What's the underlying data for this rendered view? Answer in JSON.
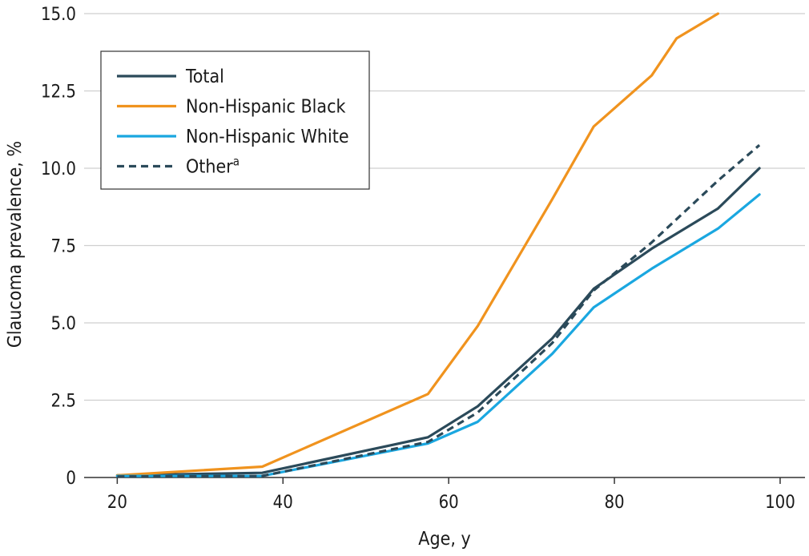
{
  "chart_data": {
    "type": "line",
    "xlabel": "Age, y",
    "ylabel": "Glaucoma prevalence, %",
    "xlim": [
      16,
      103
    ],
    "ylim": [
      0,
      15
    ],
    "x_ticks": [
      "20",
      "40",
      "60",
      "80",
      "100"
    ],
    "y_ticks": [
      "0",
      "2.5",
      "5.0",
      "7.5",
      "10.0",
      "12.5",
      "15.0"
    ],
    "grid": "horizontal",
    "legend_position": "top-left",
    "series": [
      {
        "name": "Total",
        "color": "#2b4a5a",
        "dash": "solid",
        "points": [
          [
            20,
            0.07
          ],
          [
            37.5,
            0.15
          ],
          [
            57.5,
            1.3
          ],
          [
            63.5,
            2.3
          ],
          [
            72.5,
            4.5
          ],
          [
            77.5,
            6.1
          ],
          [
            84.5,
            7.4
          ],
          [
            92.5,
            8.7
          ],
          [
            97.5,
            10.0
          ]
        ]
      },
      {
        "name": "Non-Hispanic Black",
        "color": "#f0931e",
        "dash": "solid",
        "points": [
          [
            20,
            0.07
          ],
          [
            37.5,
            0.35
          ],
          [
            57.5,
            2.7
          ],
          [
            63.5,
            4.9
          ],
          [
            72.5,
            9.0
          ],
          [
            77.5,
            11.35
          ],
          [
            84.5,
            13.0
          ],
          [
            87.5,
            14.2
          ],
          [
            92.5,
            15.0
          ]
        ]
      },
      {
        "name": "Non-Hispanic White",
        "color": "#1aa7e0",
        "dash": "solid",
        "points": [
          [
            20,
            0.05
          ],
          [
            37.5,
            0.05
          ],
          [
            57.5,
            1.1
          ],
          [
            63.5,
            1.8
          ],
          [
            72.5,
            4.0
          ],
          [
            77.5,
            5.5
          ],
          [
            84.5,
            6.75
          ],
          [
            92.5,
            8.05
          ],
          [
            97.5,
            9.15
          ]
        ]
      },
      {
        "name": "Other",
        "name_sup": "a",
        "color": "#2b4a5a",
        "dash": "dashed",
        "points": [
          [
            20,
            0.03
          ],
          [
            37.5,
            0.05
          ],
          [
            57.5,
            1.15
          ],
          [
            63.5,
            2.1
          ],
          [
            72.5,
            4.35
          ],
          [
            77.5,
            6.05
          ],
          [
            84.5,
            7.6
          ],
          [
            92.5,
            9.6
          ],
          [
            97.5,
            10.75
          ]
        ]
      }
    ]
  }
}
